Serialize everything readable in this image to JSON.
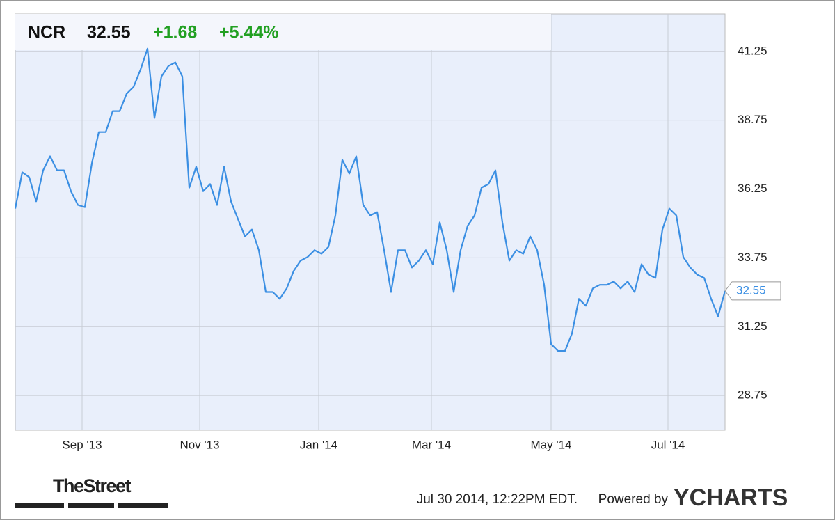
{
  "chart_data": {
    "type": "line",
    "symbol": "NCR",
    "price": "32.55",
    "change": "+1.68",
    "change_pct": "+5.44%",
    "values": [
      35.54,
      36.86,
      36.68,
      35.8,
      36.93,
      37.44,
      36.93,
      36.93,
      36.17,
      35.67,
      35.59,
      37.18,
      38.32,
      38.32,
      39.08,
      39.08,
      39.71,
      39.96,
      40.59,
      41.35,
      38.83,
      40.34,
      40.72,
      40.85,
      40.34,
      36.3,
      37.06,
      36.17,
      36.43,
      35.67,
      37.06,
      35.8,
      35.16,
      34.53,
      34.78,
      34.03,
      32.51,
      32.51,
      32.26,
      32.64,
      33.27,
      33.65,
      33.78,
      34.03,
      33.9,
      34.15,
      35.29,
      37.31,
      36.81,
      37.44,
      35.67,
      35.29,
      35.41,
      34.03,
      32.51,
      34.03,
      34.03,
      33.4,
      33.65,
      34.03,
      33.52,
      35.04,
      34.03,
      32.51,
      34.03,
      34.91,
      35.29,
      36.3,
      36.43,
      36.93,
      35.04,
      33.65,
      34.03,
      33.9,
      34.53,
      34.03,
      32.77,
      30.62,
      30.37,
      30.37,
      31.0,
      32.26,
      32.01,
      32.64,
      32.77,
      32.77,
      32.89,
      32.64,
      32.89,
      32.51,
      33.52,
      33.14,
      33.02,
      34.78,
      35.54,
      35.29,
      33.78,
      33.4,
      33.14,
      33.02,
      32.26,
      31.63,
      32.55
    ],
    "color": "#3b8fe3",
    "xlim": [
      0,
      102
    ],
    "xticks": [
      {
        "value": 9.6,
        "label": "Sep '13"
      },
      {
        "value": 26.5,
        "label": "Nov '13"
      },
      {
        "value": 43.6,
        "label": "Jan '14"
      },
      {
        "value": 59.8,
        "label": "Mar '14"
      },
      {
        "value": 77,
        "label": "May '14"
      },
      {
        "value": 93.8,
        "label": "Jul '14"
      }
    ],
    "ylim": [
      27.49,
      42.61
    ],
    "yticks": [
      28.75,
      31.25,
      33.75,
      36.25,
      38.75,
      41.25
    ],
    "grid": true,
    "timestamp": "Jul 30 2014, 12:22PM EDT.",
    "powered_by": "Powered by",
    "brand": "YCHARTS",
    "logo": "TheStreet"
  }
}
